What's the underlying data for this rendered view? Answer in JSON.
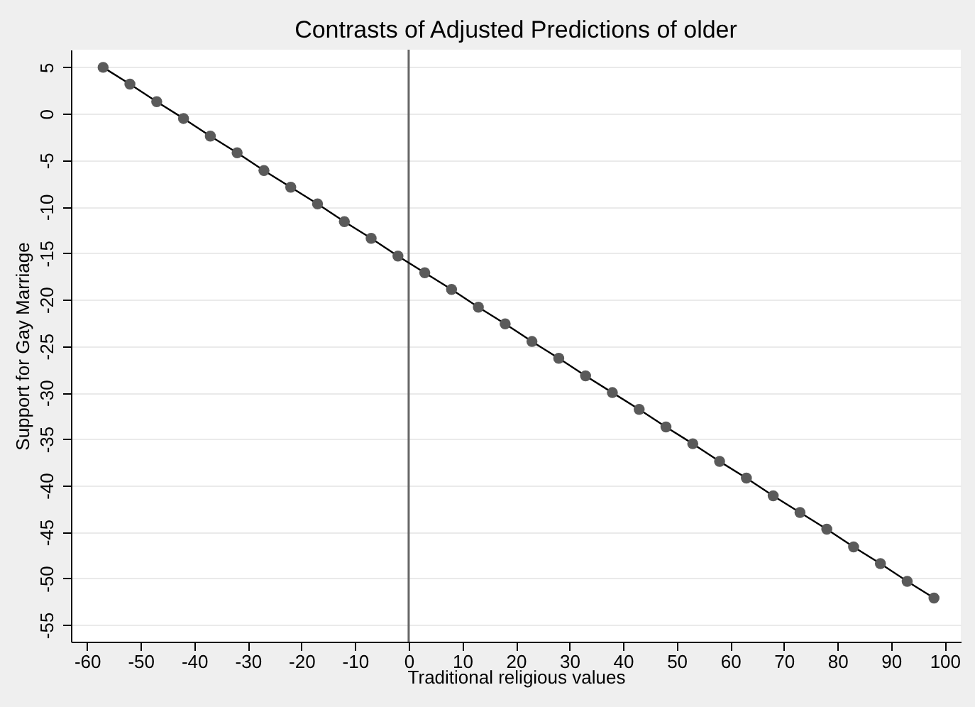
{
  "chart_data": {
    "type": "line",
    "title": "Contrasts of Adjusted Predictions of older",
    "xlabel": "Traditional religious values",
    "ylabel": "Support for Gay Marriage",
    "x": [
      -57,
      -52,
      -47,
      -42,
      -37,
      -32,
      -27,
      -22,
      -17,
      -12,
      -7,
      -2,
      3,
      8,
      13,
      18,
      23,
      28,
      33,
      38,
      43,
      48,
      53,
      58,
      63,
      68,
      73,
      78,
      83,
      88,
      93,
      98
    ],
    "series": [
      {
        "color": "#5a5a5a",
        "values": [
          5,
          3.2,
          1.3,
          -0.5,
          -2.4,
          -4.2,
          -6.1,
          -7.9,
          -9.7,
          -11.6,
          -13.4,
          -15.3,
          -17.1,
          -18.9,
          -20.8,
          -22.6,
          -24.5,
          -26.3,
          -28.2,
          -30.0,
          -31.8,
          -33.7,
          -35.5,
          -37.4,
          -39.2,
          -41.1,
          -42.9,
          -44.7,
          -46.6,
          -48.4,
          -50.3,
          -52.1
        ]
      }
    ],
    "xlim": [
      -63,
      103
    ],
    "xticks": [
      -60,
      -50,
      -40,
      -30,
      -20,
      -10,
      0,
      10,
      20,
      30,
      40,
      50,
      60,
      70,
      80,
      90,
      100
    ],
    "ylim": [
      -56.8,
      6.9
    ],
    "yticks": [
      5,
      0,
      -5,
      -10,
      -15,
      -20,
      -25,
      -30,
      -35,
      -40,
      -45,
      -50,
      -55
    ],
    "ref_lines": [
      {
        "axis": "x",
        "value": 0,
        "color": "#666666"
      }
    ],
    "grid": "y",
    "marker": "circle",
    "line_style": "solid"
  }
}
